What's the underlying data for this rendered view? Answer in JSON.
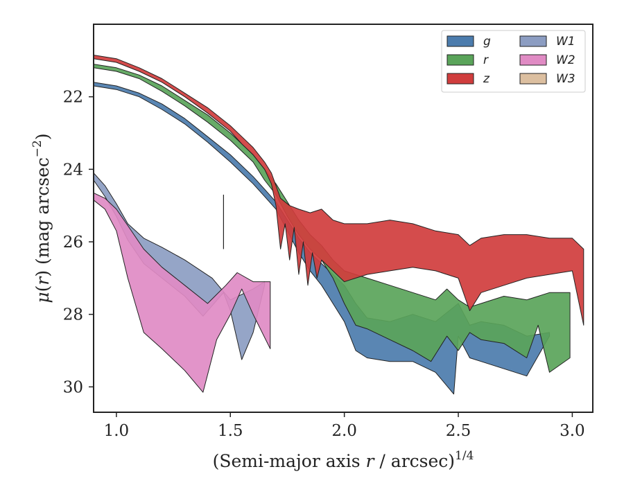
{
  "chart_data": {
    "type": "area",
    "title": "",
    "xlabel": {
      "prefix": "(Semi-major axis ",
      "var": "r",
      "suffix": " / arcsec)",
      "sup": "1/4"
    },
    "ylabel": {
      "mu": "μ",
      "open": "(",
      "var": "r",
      "close": ") (mag arcsec",
      "sup": "−2",
      "end": ")"
    },
    "xlim": [
      0.9,
      3.09
    ],
    "ylim": [
      30.7,
      20.0
    ],
    "y_inverted": true,
    "x_ticks": [
      1.0,
      1.5,
      2.0,
      2.5,
      3.0
    ],
    "x_tick_labels": [
      "1.0",
      "1.5",
      "2.0",
      "2.5",
      "3.0"
    ],
    "y_ticks": [
      22,
      24,
      26,
      28,
      30
    ],
    "y_tick_labels": [
      "22",
      "24",
      "26",
      "28",
      "30"
    ],
    "grid": false,
    "legend": {
      "placement": "top-right",
      "columns": 2
    },
    "reference_line": {
      "x": 1.47,
      "y_from": 24.7,
      "y_to": 26.2
    },
    "series": [
      {
        "name": "W1",
        "color": "#8c9dc2",
        "upper": [
          [
            0.9,
            24.1
          ],
          [
            0.95,
            24.45
          ],
          [
            1.0,
            24.95
          ],
          [
            1.05,
            25.5
          ],
          [
            1.12,
            25.9
          ],
          [
            1.2,
            26.15
          ],
          [
            1.3,
            26.5
          ],
          [
            1.42,
            27.0
          ],
          [
            1.5,
            27.6
          ],
          [
            1.6,
            27.3
          ],
          [
            1.65,
            27.1
          ]
        ],
        "lower": [
          [
            0.9,
            24.3
          ],
          [
            0.95,
            24.75
          ],
          [
            1.0,
            25.3
          ],
          [
            1.05,
            25.95
          ],
          [
            1.12,
            26.6
          ],
          [
            1.2,
            27.0
          ],
          [
            1.3,
            27.5
          ],
          [
            1.38,
            28.05
          ],
          [
            1.47,
            27.4
          ],
          [
            1.5,
            27.9
          ],
          [
            1.55,
            29.25
          ],
          [
            1.6,
            28.5
          ],
          [
            1.65,
            27.2
          ]
        ]
      },
      {
        "name": "W2",
        "color": "#e08bc4",
        "upper": [
          [
            0.9,
            24.65
          ],
          [
            0.95,
            24.8
          ],
          [
            1.0,
            25.1
          ],
          [
            1.05,
            25.55
          ],
          [
            1.12,
            26.2
          ],
          [
            1.2,
            26.7
          ],
          [
            1.3,
            27.2
          ],
          [
            1.4,
            27.7
          ],
          [
            1.48,
            27.2
          ],
          [
            1.53,
            26.85
          ],
          [
            1.6,
            27.1
          ],
          [
            1.675,
            27.1
          ]
        ],
        "lower": [
          [
            0.9,
            24.85
          ],
          [
            0.95,
            25.1
          ],
          [
            1.0,
            25.7
          ],
          [
            1.05,
            27.0
          ],
          [
            1.12,
            28.5
          ],
          [
            1.2,
            28.95
          ],
          [
            1.3,
            29.55
          ],
          [
            1.38,
            30.15
          ],
          [
            1.44,
            28.7
          ],
          [
            1.5,
            28.0
          ],
          [
            1.55,
            27.3
          ],
          [
            1.6,
            28.0
          ],
          [
            1.675,
            28.95
          ]
        ]
      },
      {
        "name": "g",
        "color": "#4c7cad",
        "upper": [
          [
            0.9,
            21.6
          ],
          [
            1.0,
            21.7
          ],
          [
            1.1,
            21.9
          ],
          [
            1.2,
            22.2
          ],
          [
            1.3,
            22.6
          ],
          [
            1.4,
            23.1
          ],
          [
            1.5,
            23.6
          ],
          [
            1.6,
            24.2
          ],
          [
            1.65,
            24.55
          ],
          [
            1.7,
            24.9
          ],
          [
            1.75,
            25.4
          ],
          [
            1.8,
            25.9
          ],
          [
            1.85,
            26.3
          ],
          [
            1.9,
            26.6
          ],
          [
            1.95,
            26.9
          ],
          [
            2.0,
            27.2
          ],
          [
            2.05,
            27.7
          ],
          [
            2.1,
            28.1
          ],
          [
            2.2,
            28.2
          ],
          [
            2.3,
            28.0
          ],
          [
            2.4,
            28.2
          ],
          [
            2.5,
            27.7
          ],
          [
            2.55,
            28.3
          ],
          [
            2.6,
            28.2
          ],
          [
            2.7,
            28.3
          ],
          [
            2.8,
            28.6
          ],
          [
            2.9,
            28.5
          ]
        ],
        "lower": [
          [
            0.9,
            21.7
          ],
          [
            1.0,
            21.8
          ],
          [
            1.1,
            22.0
          ],
          [
            1.2,
            22.35
          ],
          [
            1.3,
            22.75
          ],
          [
            1.4,
            23.25
          ],
          [
            1.5,
            23.8
          ],
          [
            1.6,
            24.4
          ],
          [
            1.65,
            24.75
          ],
          [
            1.7,
            25.1
          ],
          [
            1.75,
            25.7
          ],
          [
            1.8,
            26.3
          ],
          [
            1.85,
            26.8
          ],
          [
            1.9,
            27.2
          ],
          [
            1.95,
            27.7
          ],
          [
            2.0,
            28.2
          ],
          [
            2.05,
            29.0
          ],
          [
            2.1,
            29.2
          ],
          [
            2.2,
            29.3
          ],
          [
            2.3,
            29.3
          ],
          [
            2.4,
            29.6
          ],
          [
            2.48,
            30.2
          ],
          [
            2.5,
            28.6
          ],
          [
            2.55,
            29.2
          ],
          [
            2.6,
            29.3
          ],
          [
            2.7,
            29.5
          ],
          [
            2.8,
            29.7
          ],
          [
            2.9,
            28.6
          ]
        ]
      },
      {
        "name": "r",
        "color": "#5aa45a",
        "upper": [
          [
            0.9,
            21.1
          ],
          [
            1.0,
            21.2
          ],
          [
            1.1,
            21.4
          ],
          [
            1.2,
            21.7
          ],
          [
            1.3,
            22.1
          ],
          [
            1.4,
            22.5
          ],
          [
            1.5,
            23.0
          ],
          [
            1.6,
            23.6
          ],
          [
            1.65,
            24.0
          ],
          [
            1.7,
            24.4
          ],
          [
            1.75,
            24.9
          ],
          [
            1.8,
            25.4
          ],
          [
            1.85,
            25.8
          ],
          [
            1.9,
            26.1
          ],
          [
            1.95,
            26.5
          ],
          [
            2.0,
            26.8
          ],
          [
            2.1,
            27.0
          ],
          [
            2.2,
            27.2
          ],
          [
            2.3,
            27.4
          ],
          [
            2.4,
            27.6
          ],
          [
            2.45,
            27.3
          ],
          [
            2.5,
            27.6
          ],
          [
            2.55,
            27.8
          ],
          [
            2.6,
            27.7
          ],
          [
            2.7,
            27.5
          ],
          [
            2.8,
            27.6
          ],
          [
            2.9,
            27.4
          ],
          [
            2.99,
            27.4
          ]
        ],
        "lower": [
          [
            0.9,
            21.2
          ],
          [
            1.0,
            21.3
          ],
          [
            1.1,
            21.5
          ],
          [
            1.2,
            21.85
          ],
          [
            1.3,
            22.25
          ],
          [
            1.4,
            22.7
          ],
          [
            1.5,
            23.2
          ],
          [
            1.6,
            23.8
          ],
          [
            1.65,
            24.3
          ],
          [
            1.7,
            24.7
          ],
          [
            1.75,
            25.3
          ],
          [
            1.8,
            25.8
          ],
          [
            1.85,
            26.2
          ],
          [
            1.9,
            26.5
          ],
          [
            1.95,
            27.0
          ],
          [
            2.0,
            27.7
          ],
          [
            2.05,
            28.3
          ],
          [
            2.1,
            28.4
          ],
          [
            2.2,
            28.7
          ],
          [
            2.3,
            29.0
          ],
          [
            2.38,
            29.3
          ],
          [
            2.45,
            28.6
          ],
          [
            2.5,
            29.0
          ],
          [
            2.55,
            28.5
          ],
          [
            2.6,
            28.7
          ],
          [
            2.7,
            28.8
          ],
          [
            2.8,
            29.2
          ],
          [
            2.85,
            28.3
          ],
          [
            2.9,
            29.6
          ],
          [
            2.99,
            29.2
          ]
        ]
      },
      {
        "name": "z",
        "color": "#d03d3d",
        "upper": [
          [
            0.9,
            20.85
          ],
          [
            1.0,
            20.95
          ],
          [
            1.1,
            21.2
          ],
          [
            1.2,
            21.5
          ],
          [
            1.3,
            21.9
          ],
          [
            1.4,
            22.3
          ],
          [
            1.5,
            22.8
          ],
          [
            1.55,
            23.1
          ],
          [
            1.6,
            23.4
          ],
          [
            1.65,
            23.8
          ],
          [
            1.68,
            24.1
          ],
          [
            1.72,
            24.8
          ],
          [
            1.76,
            25.0
          ],
          [
            1.8,
            25.1
          ],
          [
            1.85,
            25.2
          ],
          [
            1.9,
            25.1
          ],
          [
            1.95,
            25.4
          ],
          [
            2.0,
            25.5
          ],
          [
            2.1,
            25.5
          ],
          [
            2.2,
            25.4
          ],
          [
            2.3,
            25.5
          ],
          [
            2.4,
            25.7
          ],
          [
            2.5,
            25.8
          ],
          [
            2.55,
            26.1
          ],
          [
            2.6,
            25.9
          ],
          [
            2.7,
            25.8
          ],
          [
            2.8,
            25.8
          ],
          [
            2.9,
            25.9
          ],
          [
            3.0,
            25.9
          ],
          [
            3.05,
            26.2
          ]
        ],
        "lower": [
          [
            0.9,
            20.95
          ],
          [
            1.0,
            21.05
          ],
          [
            1.1,
            21.3
          ],
          [
            1.2,
            21.6
          ],
          [
            1.3,
            22.0
          ],
          [
            1.4,
            22.45
          ],
          [
            1.5,
            22.95
          ],
          [
            1.55,
            23.3
          ],
          [
            1.6,
            23.6
          ],
          [
            1.65,
            24.0
          ],
          [
            1.68,
            24.4
          ],
          [
            1.7,
            25.0
          ],
          [
            1.72,
            26.2
          ],
          [
            1.74,
            25.5
          ],
          [
            1.76,
            26.5
          ],
          [
            1.78,
            25.6
          ],
          [
            1.8,
            26.9
          ],
          [
            1.82,
            26.0
          ],
          [
            1.84,
            27.2
          ],
          [
            1.86,
            26.3
          ],
          [
            1.88,
            27.0
          ],
          [
            1.9,
            26.5
          ],
          [
            1.95,
            26.8
          ],
          [
            2.0,
            27.1
          ],
          [
            2.1,
            26.9
          ],
          [
            2.2,
            26.8
          ],
          [
            2.3,
            26.7
          ],
          [
            2.4,
            26.8
          ],
          [
            2.5,
            27.0
          ],
          [
            2.55,
            27.9
          ],
          [
            2.6,
            27.4
          ],
          [
            2.7,
            27.2
          ],
          [
            2.8,
            27.0
          ],
          [
            2.9,
            26.9
          ],
          [
            3.0,
            26.8
          ],
          [
            3.05,
            28.3
          ]
        ]
      }
    ],
    "legend_entries": [
      {
        "name": "g",
        "color": "#4c7cad"
      },
      {
        "name": "r",
        "color": "#5aa45a"
      },
      {
        "name": "z",
        "color": "#d03d3d"
      },
      {
        "name": "W1",
        "color": "#8c9dc2"
      },
      {
        "name": "W2",
        "color": "#e08bc4"
      },
      {
        "name": "W3",
        "color": "#dcbfa0"
      }
    ]
  }
}
